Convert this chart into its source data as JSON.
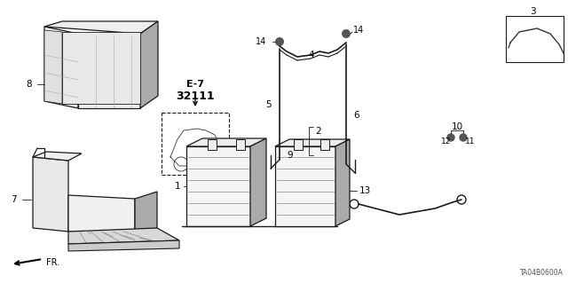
{
  "background_color": "#ffffff",
  "line_color": "#1a1a1a",
  "text_color": "#000000",
  "diagram_code": "TA04B0600A",
  "gray_fill": "#d8d8d8",
  "light_gray": "#eeeeee",
  "mid_gray": "#aaaaaa"
}
